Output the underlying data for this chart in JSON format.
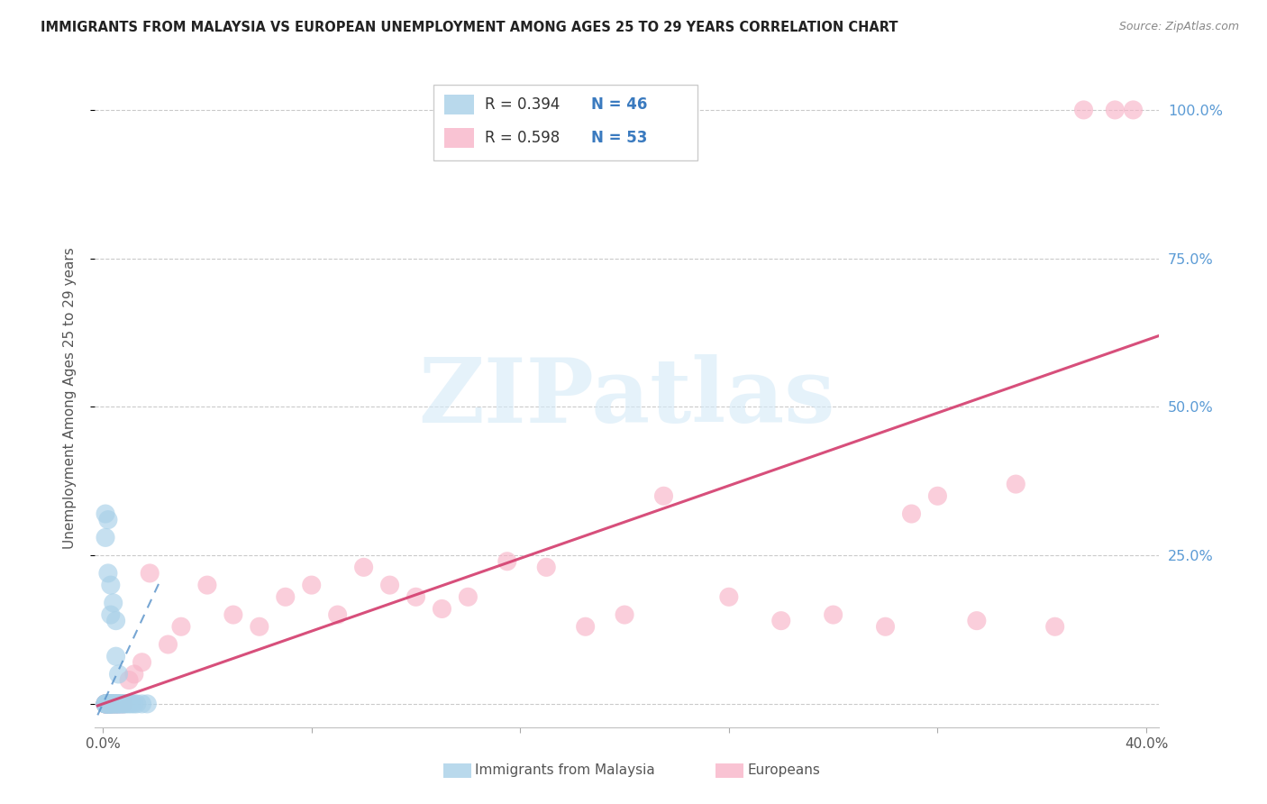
{
  "title": "IMMIGRANTS FROM MALAYSIA VS EUROPEAN UNEMPLOYMENT AMONG AGES 25 TO 29 YEARS CORRELATION CHART",
  "source": "Source: ZipAtlas.com",
  "ylabel": "Unemployment Among Ages 25 to 29 years",
  "xlim": [
    -0.003,
    0.405
  ],
  "ylim": [
    -0.04,
    1.07
  ],
  "xtick_pos": [
    0.0,
    0.08,
    0.16,
    0.24,
    0.32,
    0.4
  ],
  "xtick_labels": [
    "0.0%",
    "",
    "",
    "",
    "",
    "40.0%"
  ],
  "ytick_pos": [
    0.0,
    0.25,
    0.5,
    0.75,
    1.0
  ],
  "ytick_right_labels": [
    "",
    "25.0%",
    "50.0%",
    "75.0%",
    "100.0%"
  ],
  "color_blue": "#a8d0e8",
  "color_pink": "#f8b4c8",
  "color_blue_line": "#5590c8",
  "color_pink_line": "#d44070",
  "watermark_color": "#d5eaf8",
  "watermark": "ZIPatlas",
  "r_malaysia": "R = 0.394",
  "n_malaysia": "N = 46",
  "r_european": "R = 0.598",
  "n_european": "N = 53",
  "legend_label_malaysia": "Immigrants from Malaysia",
  "legend_label_european": "Europeans",
  "malaysia_x": [
    0.001,
    0.001,
    0.001,
    0.001,
    0.001,
    0.002,
    0.002,
    0.002,
    0.002,
    0.002,
    0.002,
    0.003,
    0.003,
    0.003,
    0.003,
    0.003,
    0.004,
    0.004,
    0.004,
    0.005,
    0.005,
    0.005,
    0.006,
    0.006,
    0.006,
    0.007,
    0.007,
    0.008,
    0.008,
    0.009,
    0.01,
    0.011,
    0.012,
    0.013,
    0.015,
    0.017,
    0.001,
    0.002,
    0.003,
    0.003,
    0.004,
    0.005,
    0.005,
    0.006,
    0.001,
    0.002
  ],
  "malaysia_y": [
    0.0,
    0.0,
    0.0,
    0.0,
    0.0,
    0.0,
    0.0,
    0.0,
    0.0,
    0.0,
    0.0,
    0.0,
    0.0,
    0.0,
    0.0,
    0.0,
    0.0,
    0.0,
    0.0,
    0.0,
    0.0,
    0.0,
    0.0,
    0.0,
    0.0,
    0.0,
    0.0,
    0.0,
    0.0,
    0.0,
    0.0,
    0.0,
    0.0,
    0.0,
    0.0,
    0.0,
    0.28,
    0.31,
    0.2,
    0.15,
    0.17,
    0.14,
    0.08,
    0.05,
    0.32,
    0.22
  ],
  "european_x": [
    0.001,
    0.001,
    0.001,
    0.001,
    0.001,
    0.002,
    0.002,
    0.002,
    0.002,
    0.003,
    0.003,
    0.003,
    0.004,
    0.004,
    0.005,
    0.005,
    0.006,
    0.007,
    0.008,
    0.01,
    0.012,
    0.015,
    0.018,
    0.025,
    0.03,
    0.04,
    0.05,
    0.06,
    0.07,
    0.08,
    0.09,
    0.1,
    0.11,
    0.12,
    0.13,
    0.14,
    0.155,
    0.17,
    0.185,
    0.2,
    0.215,
    0.24,
    0.26,
    0.28,
    0.3,
    0.31,
    0.32,
    0.335,
    0.35,
    0.365,
    0.376,
    0.388,
    0.395
  ],
  "european_y": [
    0.0,
    0.0,
    0.0,
    0.0,
    0.0,
    0.0,
    0.0,
    0.0,
    0.0,
    0.0,
    0.0,
    0.0,
    0.0,
    0.0,
    0.0,
    0.0,
    0.0,
    0.0,
    0.0,
    0.04,
    0.05,
    0.07,
    0.22,
    0.1,
    0.13,
    0.2,
    0.15,
    0.13,
    0.18,
    0.2,
    0.15,
    0.23,
    0.2,
    0.18,
    0.16,
    0.18,
    0.24,
    0.23,
    0.13,
    0.15,
    0.35,
    0.18,
    0.14,
    0.15,
    0.13,
    0.32,
    0.35,
    0.14,
    0.37,
    0.13,
    1.0,
    1.0,
    1.0
  ],
  "blue_line_x": [
    0.0,
    0.018
  ],
  "blue_line_y": [
    0.0,
    0.17
  ],
  "pink_line_x": [
    0.0,
    0.405
  ],
  "pink_line_y": [
    0.0,
    0.62
  ]
}
